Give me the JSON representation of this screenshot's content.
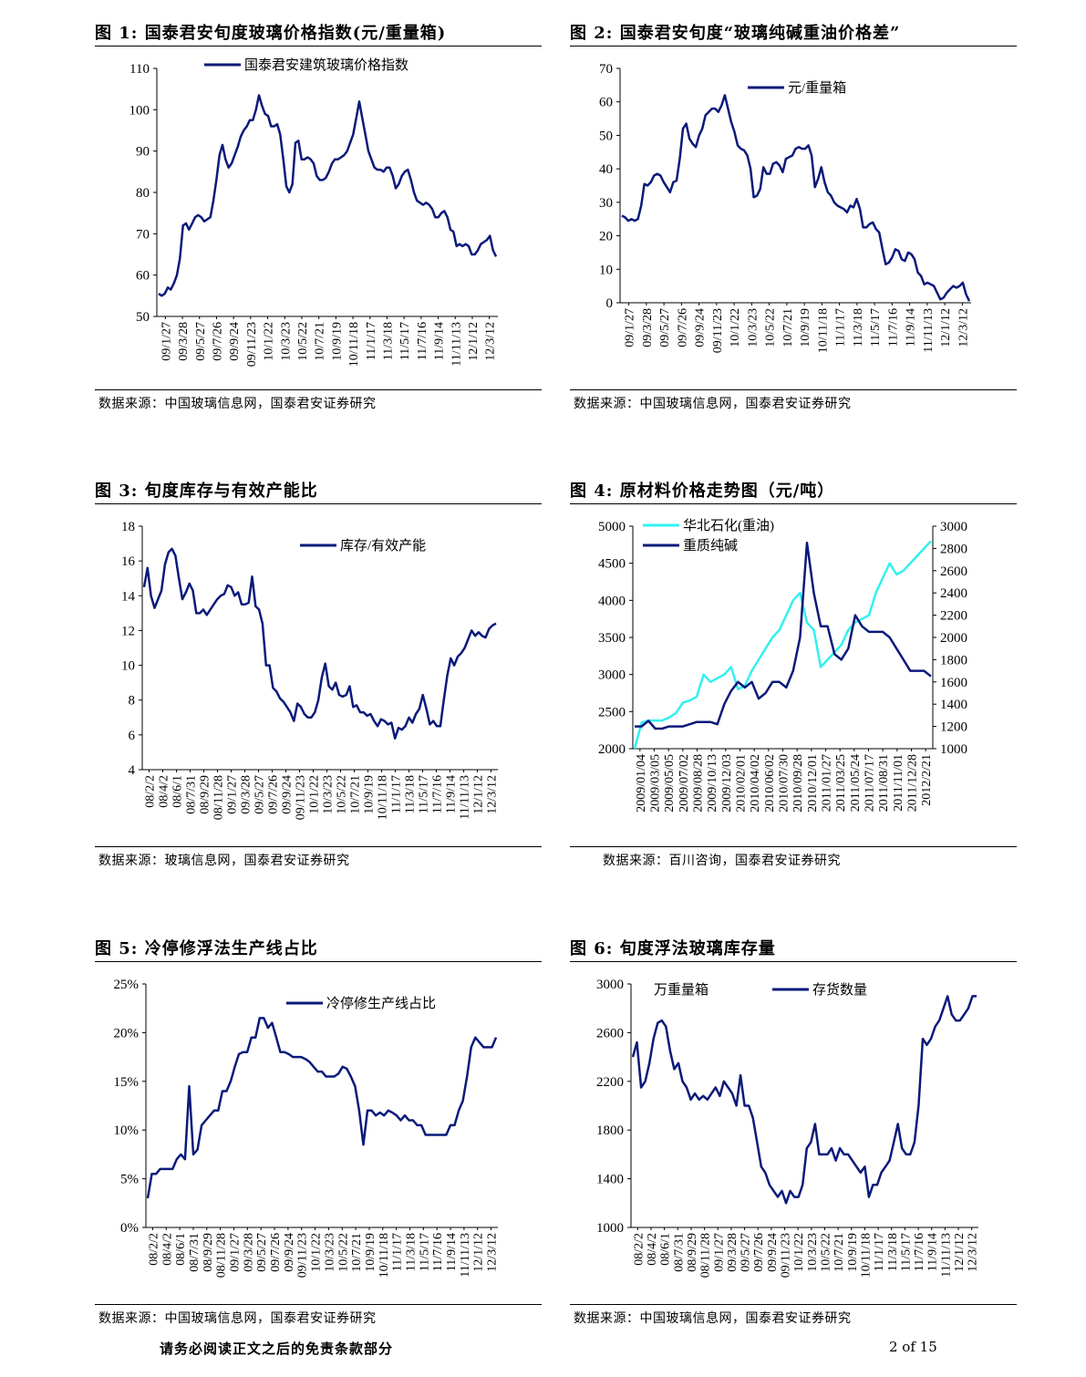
{
  "footer": {
    "disclaimer": "请务必阅读正文之后的免责条款部分",
    "page": "2 of 15"
  },
  "chart_data": [
    {
      "id": "fig1",
      "type": "line",
      "title": "图 1:  国泰君安旬度玻璃价格指数(元/重量箱)",
      "source": "数据来源：中国玻璃信息网，国泰君安证券研究",
      "ylim": [
        50,
        110
      ],
      "yticks": [
        "50",
        "60",
        "70",
        "80",
        "90",
        "100",
        "110"
      ],
      "xticks": [
        "09/1/27",
        "09/3/28",
        "09/5/27",
        "09/7/26",
        "09/9/24",
        "09/11/23",
        "10/1/22",
        "10/3/23",
        "10/5/22",
        "10/7/21",
        "10/9/19",
        "10/11/18",
        "11/1/17",
        "11/3/18",
        "11/5/17",
        "11/7/16",
        "11/9/14",
        "11/11/13",
        "12/1/12",
        "12/3/12"
      ],
      "legend_position": "top",
      "series": [
        {
          "name": "国泰君安建筑玻璃价格指数",
          "color": "#0a1a7a",
          "values": [
            55.5,
            55,
            55.5,
            57,
            56.5,
            58,
            60,
            64,
            72,
            72.5,
            71,
            72.5,
            74,
            74.5,
            74,
            73,
            73.5,
            74,
            78,
            83,
            89,
            91.5,
            88,
            86,
            87,
            89,
            91,
            93.5,
            95,
            96,
            97.5,
            97.5,
            100,
            103.5,
            101,
            99,
            98.5,
            96,
            96,
            96.5,
            94,
            88,
            81.5,
            80,
            82,
            92,
            92.5,
            88,
            88,
            88.5,
            88,
            87,
            84,
            83,
            83,
            83.5,
            85,
            87,
            88,
            88,
            88.5,
            89,
            90,
            92,
            94,
            98,
            102,
            98,
            94,
            90,
            88,
            86,
            85.5,
            85.5,
            85,
            86,
            86,
            84,
            81,
            82,
            84,
            85,
            85.5,
            83,
            80,
            78,
            77.5,
            77,
            77.5,
            77,
            76,
            74,
            74,
            75,
            75.5,
            74,
            71,
            70.5,
            67,
            67.5,
            67,
            67.5,
            67,
            65,
            65,
            66,
            67.5,
            68,
            68.5,
            69.5,
            66,
            64.5
          ]
        }
      ]
    },
    {
      "id": "fig2",
      "type": "line",
      "title": "图 2:  国泰君安旬度“玻璃纯碱重油价格差”",
      "source": "数据来源：中国玻璃信息网，国泰君安证券研究",
      "ylim": [
        0,
        70
      ],
      "yticks": [
        "0",
        "10",
        "20",
        "30",
        "40",
        "50",
        "60",
        "70"
      ],
      "xticks": [
        "09/1/27",
        "09/3/28",
        "09/5/27",
        "09/7/26",
        "09/9/24",
        "09/11/23",
        "10/1/22",
        "10/3/23",
        "10/5/22",
        "10/7/21",
        "10/9/19",
        "10/11/18",
        "11/1/17",
        "11/3/18",
        "11/5/17",
        "11/7/16",
        "11/9/14",
        "11/11/13",
        "12/1/12",
        "12/3/12"
      ],
      "legend_position": "top",
      "series": [
        {
          "name": "元/重量箱",
          "color": "#0a1a7a",
          "values": [
            26,
            25.5,
            24.5,
            25,
            24.5,
            25,
            29,
            35.5,
            35,
            36,
            38,
            38.5,
            38,
            36,
            34.5,
            33,
            36,
            36.5,
            43,
            52,
            53.5,
            49,
            47.5,
            46.5,
            50,
            52,
            56,
            57,
            58,
            58,
            57,
            59,
            62,
            58,
            54,
            51,
            47,
            46,
            45.5,
            44,
            40,
            31.5,
            32,
            34,
            40.5,
            38.5,
            38.5,
            41.5,
            42,
            41,
            39,
            43,
            43.5,
            44,
            46,
            46.5,
            46,
            46,
            47,
            44,
            34.5,
            37,
            40.5,
            36,
            33,
            32,
            30,
            29,
            28.5,
            28,
            27,
            29,
            28.5,
            31,
            28,
            22.5,
            22.5,
            23.5,
            24,
            22,
            21,
            16,
            11.5,
            12,
            13.5,
            16,
            15.5,
            13,
            12.5,
            15,
            14.5,
            13,
            9,
            8,
            5.5,
            6,
            5.5,
            5,
            3,
            1,
            1.5,
            3,
            4,
            5,
            4.5,
            5,
            6,
            2.5,
            0.5
          ]
        }
      ]
    },
    {
      "id": "fig3",
      "type": "line",
      "title": "图 3:    旬度库存与有效产能比",
      "source": "数据来源：玻璃信息网，国泰君安证券研究",
      "ylim": [
        4,
        18
      ],
      "yticks": [
        "4",
        "6",
        "8",
        "10",
        "12",
        "14",
        "16",
        "18"
      ],
      "xticks": [
        "08/2/2",
        "08/4/2",
        "08/6/1",
        "08/7/31",
        "08/9/29",
        "08/11/28",
        "09/1/27",
        "09/3/28",
        "09/5/27",
        "09/7/26",
        "09/9/24",
        "09/11/23",
        "10/1/22",
        "10/3/23",
        "10/5/22",
        "10/7/21",
        "10/9/19",
        "10/11/18",
        "11/1/17",
        "11/3/18",
        "11/5/17",
        "11/7/16",
        "11/9/14",
        "11/11/13",
        "12/1/12",
        "12/3/12"
      ],
      "legend_position": "top",
      "series": [
        {
          "name": "库存/有效产能",
          "color": "#0a1a7a",
          "values": [
            14.5,
            15.6,
            14,
            13.3,
            13.8,
            14.3,
            15.8,
            16.5,
            16.7,
            16.3,
            15,
            13.8,
            14.2,
            14.7,
            14.3,
            13,
            13,
            13.2,
            12.9,
            13.2,
            13.5,
            13.8,
            14,
            14.1,
            14.6,
            14.5,
            14,
            14.2,
            13.5,
            13.5,
            13.6,
            15.1,
            13.4,
            13.2,
            12.4,
            10,
            10,
            8.7,
            8.5,
            8.1,
            7.9,
            7.6,
            7.3,
            6.8,
            7.8,
            7.6,
            7.2,
            7,
            7,
            7.3,
            8,
            9.3,
            10.1,
            8.8,
            8.6,
            9,
            8.3,
            8.2,
            8.3,
            8.8,
            7.6,
            7.7,
            7.3,
            7.3,
            7.1,
            7.2,
            6.8,
            6.5,
            6.9,
            6.8,
            6.6,
            6.7,
            5.8,
            6.4,
            6.3,
            6.5,
            7,
            6.7,
            7.2,
            7.5,
            8.3,
            7.5,
            6.6,
            6.8,
            6.5,
            6.5,
            8,
            9.4,
            10.4,
            10,
            10.5,
            10.7,
            11,
            11.5,
            12,
            11.7,
            11.9,
            11.7,
            11.6,
            12.1,
            12.3,
            12.4
          ]
        }
      ]
    },
    {
      "id": "fig4",
      "type": "line",
      "title": "图 4:  原材料价格走势图（元/吨）",
      "source": "数据来源：百川咨询，国泰君安证券研究",
      "ylim_left": [
        2000,
        5000
      ],
      "ylim_right": [
        1000,
        3000
      ],
      "yticks_left": [
        "2000",
        "2500",
        "3000",
        "3500",
        "4000",
        "4500",
        "5000"
      ],
      "yticks_right": [
        "1000",
        "1200",
        "1400",
        "1600",
        "1800",
        "2000",
        "2200",
        "2400",
        "2600",
        "2800",
        "3000"
      ],
      "xticks": [
        "2009/01/04",
        "2009/03/05",
        "2009/05/05",
        "2009/07/02",
        "2009/08/28",
        "2009/10/13",
        "2009/12/03",
        "2010/02/01",
        "2010/04/02",
        "2010/06/02",
        "2010/07/30",
        "2010/09/28",
        "2010/12/01",
        "2011/01/27",
        "2011/03/25",
        "2011/05/24",
        "2011/07/17",
        "2011/08/31",
        "2011/11/01",
        "2011/12/28",
        "2012/2/21"
      ],
      "legend_position": "top-left",
      "series": [
        {
          "name": "华北石化(重油)",
          "color": "#33f0f0",
          "axis": "left",
          "values": [
            2000,
            2350,
            2380,
            2380,
            2380,
            2420,
            2480,
            2620,
            2650,
            2700,
            3000,
            2900,
            2950,
            3000,
            3100,
            2800,
            2850,
            3050,
            3200,
            3350,
            3500,
            3600,
            3800,
            4000,
            4100,
            3700,
            3600,
            3100,
            3200,
            3300,
            3400,
            3600,
            3700,
            3750,
            3800,
            4100,
            4300,
            4500,
            4350,
            4400,
            4500,
            4600,
            4700,
            4800
          ]
        },
        {
          "name": "重质纯碱",
          "color": "#0a1a7a",
          "axis": "right",
          "values": [
            1200,
            1200,
            1250,
            1180,
            1180,
            1200,
            1200,
            1200,
            1220,
            1240,
            1240,
            1240,
            1220,
            1400,
            1520,
            1600,
            1550,
            1600,
            1450,
            1500,
            1600,
            1600,
            1550,
            1700,
            2000,
            2850,
            2400,
            2100,
            2100,
            1850,
            1800,
            1900,
            2200,
            2100,
            2050,
            2050,
            2050,
            2000,
            1900,
            1800,
            1700,
            1700,
            1700,
            1650
          ]
        }
      ]
    },
    {
      "id": "fig5",
      "type": "line",
      "title": "图 5:  冷停修浮法生产线占比",
      "source": "数据来源：中国玻璃信息网，国泰君安证券研究",
      "ylim": [
        0,
        25
      ],
      "yticks": [
        "0%",
        "5%",
        "10%",
        "15%",
        "20%",
        "25%"
      ],
      "xticks": [
        "08/2/2",
        "08/4/2",
        "08/6/1",
        "08/7/31",
        "08/9/29",
        "08/11/28",
        "09/1/27",
        "09/3/28",
        "09/5/27",
        "09/7/26",
        "09/9/24",
        "09/11/23",
        "10/1/22",
        "10/3/23",
        "10/5/22",
        "10/7/21",
        "10/9/19",
        "10/11/18",
        "11/1/17",
        "11/3/18",
        "11/5/17",
        "11/7/16",
        "11/9/14",
        "11/11/13",
        "12/1/12",
        "12/3/12"
      ],
      "legend_position": "top",
      "series": [
        {
          "name": "冷停修生产线占比",
          "color": "#0a1a7a",
          "values": [
            3,
            5.5,
            5.5,
            6,
            6,
            6,
            6,
            7,
            7.5,
            7,
            14.5,
            7.5,
            8,
            10.5,
            11,
            11.5,
            12,
            12,
            14,
            14,
            15,
            16.5,
            17.8,
            18,
            18,
            19.5,
            19.5,
            21.5,
            21.5,
            20.5,
            21,
            19.5,
            18,
            18,
            17.8,
            17.5,
            17.5,
            17.5,
            17.3,
            17,
            16.5,
            16,
            16,
            15.5,
            15.5,
            15.5,
            15.8,
            16.5,
            16.3,
            15.5,
            14.5,
            12,
            8.5,
            12,
            12,
            11.5,
            11.8,
            11.5,
            12,
            11.8,
            11.5,
            11,
            11.5,
            11,
            11,
            10.5,
            10.5,
            9.5,
            9.5,
            9.5,
            9.5,
            9.5,
            9.5,
            10.5,
            10.5,
            12,
            13,
            15.5,
            18.5,
            19.5,
            19,
            18.5,
            18.5,
            18.5,
            19.5
          ]
        }
      ]
    },
    {
      "id": "fig6",
      "type": "line",
      "title": "图 6:  旬度浮法玻璃库存量",
      "source": "数据来源：中国玻璃信息网，国泰君安证券研究",
      "ylim": [
        1000,
        3000
      ],
      "yticks": [
        "1000",
        "1400",
        "1800",
        "2200",
        "2600",
        "3000"
      ],
      "unit": "万重量箱",
      "xticks": [
        "08/2/2",
        "08/4/2",
        "08/6/1",
        "08/7/31",
        "08/9/29",
        "08/11/28",
        "09/1/27",
        "09/3/28",
        "09/5/27",
        "09/7/26",
        "09/9/24",
        "09/11/23",
        "10/1/22",
        "10/3/23",
        "10/5/22",
        "10/7/21",
        "10/9/19",
        "10/11/18",
        "11/1/17",
        "11/3/18",
        "11/5/17",
        "11/7/16",
        "11/9/14",
        "11/11/13",
        "12/1/12",
        "12/3/12"
      ],
      "legend_position": "top",
      "series": [
        {
          "name": "存货数量",
          "color": "#0a1a7a",
          "values": [
            2400,
            2520,
            2150,
            2200,
            2350,
            2550,
            2680,
            2700,
            2650,
            2450,
            2300,
            2350,
            2200,
            2150,
            2050,
            2100,
            2050,
            2080,
            2050,
            2100,
            2150,
            2080,
            2200,
            2150,
            2100,
            2000,
            2250,
            2000,
            2000,
            1900,
            1700,
            1500,
            1450,
            1350,
            1300,
            1250,
            1300,
            1200,
            1300,
            1250,
            1250,
            1350,
            1650,
            1700,
            1850,
            1600,
            1600,
            1600,
            1650,
            1550,
            1650,
            1600,
            1600,
            1550,
            1500,
            1450,
            1500,
            1250,
            1350,
            1350,
            1450,
            1500,
            1550,
            1700,
            1850,
            1650,
            1600,
            1600,
            1700,
            2000,
            2550,
            2500,
            2550,
            2650,
            2700,
            2800,
            2900,
            2750,
            2700,
            2700,
            2750,
            2800,
            2900,
            2900
          ]
        }
      ]
    }
  ]
}
